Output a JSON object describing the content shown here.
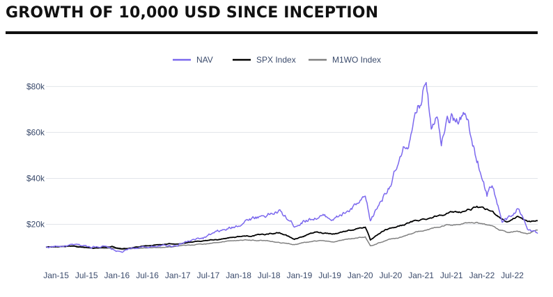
{
  "page": {
    "title": "GROWTH OF 10,000 USD SINCE INCEPTION"
  },
  "chart_data": {
    "type": "line",
    "title": "GROWTH OF 10,000 USD SINCE INCEPTION",
    "xlabel": "",
    "ylabel": "",
    "legend_position": "top-center",
    "grid": "horizontal",
    "xlim": [
      "2014-11",
      "2022-12"
    ],
    "ylim": [
      5000,
      90000
    ],
    "y_ticks": [
      20000,
      40000,
      60000,
      80000
    ],
    "y_tick_labels": [
      "$20k",
      "$40k",
      "$60k",
      "$80k"
    ],
    "x_ticks": [
      "2015-01",
      "2015-07",
      "2016-01",
      "2016-07",
      "2017-01",
      "2017-07",
      "2018-01",
      "2018-07",
      "2019-01",
      "2019-07",
      "2020-01",
      "2020-07",
      "2021-01",
      "2021-07",
      "2022-01",
      "2022-07"
    ],
    "x_tick_labels": [
      "Jan-15",
      "Jul-15",
      "Jan-16",
      "Jul-16",
      "Jan-17",
      "Jul-17",
      "Jan-18",
      "Jul-18",
      "Jan-19",
      "Jul-19",
      "Jan-20",
      "Jul-20",
      "Jan-21",
      "Jul-21",
      "Jan-22",
      "Jul-22"
    ],
    "series": [
      {
        "name": "NAV",
        "color": "#7b68ee",
        "points": [
          [
            "2014-11",
            10000
          ],
          [
            "2015-02",
            10500
          ],
          [
            "2015-05",
            10800
          ],
          [
            "2015-08",
            10300
          ],
          [
            "2015-10",
            10700
          ],
          [
            "2016-01",
            8300
          ],
          [
            "2016-02",
            7800
          ],
          [
            "2016-04",
            9600
          ],
          [
            "2016-06",
            9800
          ],
          [
            "2016-09",
            10600
          ],
          [
            "2016-12",
            10700
          ],
          [
            "2017-03",
            12500
          ],
          [
            "2017-06",
            14000
          ],
          [
            "2017-09",
            16500
          ],
          [
            "2017-12",
            18500
          ],
          [
            "2018-03",
            22500
          ],
          [
            "2018-06",
            24000
          ],
          [
            "2018-09",
            25500
          ],
          [
            "2018-12",
            19500
          ],
          [
            "2019-02",
            22000
          ],
          [
            "2019-05",
            23500
          ],
          [
            "2019-08",
            22500
          ],
          [
            "2019-11",
            26000
          ],
          [
            "2020-02",
            31000
          ],
          [
            "2020-03",
            21000
          ],
          [
            "2020-05",
            30000
          ],
          [
            "2020-08",
            43000
          ],
          [
            "2020-11",
            58000
          ],
          [
            "2021-01",
            73000
          ],
          [
            "2021-02",
            85000
          ],
          [
            "2021-03",
            65000
          ],
          [
            "2021-04",
            71000
          ],
          [
            "2021-05",
            58000
          ],
          [
            "2021-06",
            70000
          ],
          [
            "2021-08",
            66000
          ],
          [
            "2021-10",
            67000
          ],
          [
            "2021-11",
            55000
          ],
          [
            "2022-01",
            42000
          ],
          [
            "2022-02",
            33000
          ],
          [
            "2022-03",
            38000
          ],
          [
            "2022-05",
            21000
          ],
          [
            "2022-07",
            23000
          ],
          [
            "2022-08",
            27000
          ],
          [
            "2022-10",
            19000
          ],
          [
            "2022-12",
            16000
          ]
        ]
      },
      {
        "name": "SPX Index",
        "color": "#000000",
        "points": [
          [
            "2014-11",
            10000
          ],
          [
            "2015-04",
            10500
          ],
          [
            "2015-08",
            9700
          ],
          [
            "2015-12",
            10400
          ],
          [
            "2016-02",
            9300
          ],
          [
            "2016-06",
            10500
          ],
          [
            "2016-12",
            11500
          ],
          [
            "2017-06",
            12500
          ],
          [
            "2017-12",
            14500
          ],
          [
            "2018-02",
            14800
          ],
          [
            "2018-06",
            15500
          ],
          [
            "2018-09",
            16500
          ],
          [
            "2018-12",
            13500
          ],
          [
            "2019-04",
            16500
          ],
          [
            "2019-08",
            16000
          ],
          [
            "2019-12",
            18000
          ],
          [
            "2020-02",
            19000
          ],
          [
            "2020-03",
            13000
          ],
          [
            "2020-06",
            17500
          ],
          [
            "2020-09",
            19500
          ],
          [
            "2020-12",
            21500
          ],
          [
            "2021-03",
            23000
          ],
          [
            "2021-06",
            25000
          ],
          [
            "2021-09",
            25500
          ],
          [
            "2021-12",
            27500
          ],
          [
            "2022-03",
            25500
          ],
          [
            "2022-06",
            21000
          ],
          [
            "2022-08",
            23500
          ],
          [
            "2022-10",
            21000
          ],
          [
            "2022-12",
            21500
          ]
        ]
      },
      {
        "name": "M1WO Index",
        "color": "#808080",
        "points": [
          [
            "2014-11",
            10000
          ],
          [
            "2015-05",
            10400
          ],
          [
            "2015-09",
            9500
          ],
          [
            "2015-12",
            9800
          ],
          [
            "2016-02",
            9000
          ],
          [
            "2016-06",
            9700
          ],
          [
            "2016-12",
            10200
          ],
          [
            "2017-06",
            11500
          ],
          [
            "2017-12",
            13000
          ],
          [
            "2018-02",
            13200
          ],
          [
            "2018-06",
            13000
          ],
          [
            "2018-12",
            11200
          ],
          [
            "2019-04",
            12800
          ],
          [
            "2019-08",
            12500
          ],
          [
            "2019-12",
            14000
          ],
          [
            "2020-02",
            14500
          ],
          [
            "2020-03",
            10500
          ],
          [
            "2020-06",
            13000
          ],
          [
            "2020-09",
            14500
          ],
          [
            "2020-12",
            16500
          ],
          [
            "2021-03",
            18000
          ],
          [
            "2021-06",
            19500
          ],
          [
            "2021-09",
            20000
          ],
          [
            "2021-12",
            21000
          ],
          [
            "2022-03",
            19000
          ],
          [
            "2022-06",
            16500
          ],
          [
            "2022-08",
            17000
          ],
          [
            "2022-10",
            15500
          ],
          [
            "2022-12",
            17500
          ]
        ]
      }
    ]
  }
}
